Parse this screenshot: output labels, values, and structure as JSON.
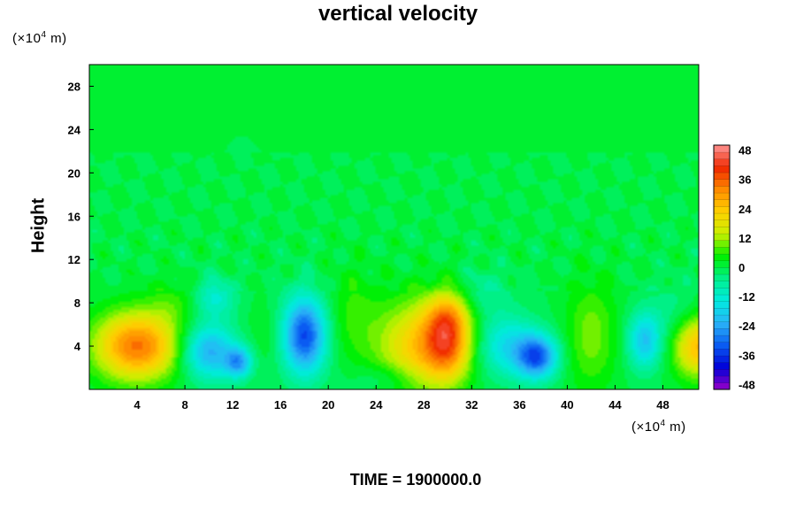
{
  "chart_data": {
    "type": "heatmap",
    "title": "vertical velocity",
    "ylabel": "Height",
    "x_unit_label": "(×10⁴ m)",
    "y_unit_label": "(×10⁴ m)",
    "unit_prefix": "(×10",
    "unit_exp": "4",
    "unit_suffix": " m)",
    "xlim": [
      0,
      51
    ],
    "ylim": [
      0,
      30
    ],
    "x_ticks": [
      4,
      8,
      12,
      16,
      20,
      24,
      28,
      32,
      36,
      40,
      44,
      48
    ],
    "y_ticks": [
      4,
      8,
      12,
      16,
      20,
      24,
      28
    ],
    "colorbar": {
      "range": [
        -50,
        50
      ],
      "ticks": [
        48,
        36,
        24,
        12,
        0,
        -12,
        -24,
        -36,
        -48
      ],
      "levels": 36
    },
    "features": [
      {
        "x": 4,
        "y": 4,
        "value": 34,
        "sx": 2.5,
        "sy": 2.2
      },
      {
        "x": 10,
        "y": 3.5,
        "value": -24,
        "sx": 1.6,
        "sy": 1.8
      },
      {
        "x": 12.5,
        "y": 2.5,
        "value": -22,
        "sx": 0.8,
        "sy": 1.0
      },
      {
        "x": 10.5,
        "y": 8.5,
        "value": -12,
        "sx": 1.2,
        "sy": 1.3
      },
      {
        "x": 18,
        "y": 5,
        "value": -34,
        "sx": 1.3,
        "sy": 2.5
      },
      {
        "x": 22,
        "y": 7,
        "value": 6,
        "sx": 1.5,
        "sy": 3.0
      },
      {
        "x": 27.5,
        "y": 4,
        "value": 22,
        "sx": 2.5,
        "sy": 3.0
      },
      {
        "x": 30,
        "y": 4.5,
        "value": 28,
        "sx": 1.4,
        "sy": 2.5
      },
      {
        "x": 30,
        "y": 7,
        "value": 10,
        "sx": 1.2,
        "sy": 1.5
      },
      {
        "x": 35,
        "y": 4,
        "value": -16,
        "sx": 1.8,
        "sy": 2.0
      },
      {
        "x": 37.5,
        "y": 3,
        "value": -30,
        "sx": 1.2,
        "sy": 1.4
      },
      {
        "x": 42,
        "y": 5,
        "value": 10,
        "sx": 1.5,
        "sy": 3.5
      },
      {
        "x": 46.5,
        "y": 4.5,
        "value": -20,
        "sx": 1.0,
        "sy": 1.8
      },
      {
        "x": 51,
        "y": 4,
        "value": 26,
        "sx": 1.5,
        "sy": 2.0
      },
      {
        "x": 49,
        "y": 7,
        "value": -5,
        "sx": 1.5,
        "sy": 2.0
      },
      {
        "x": 15,
        "y": 5,
        "value": 3,
        "sx": 1.2,
        "sy": 2.0
      },
      {
        "x": 7,
        "y": 8,
        "value": 5,
        "sx": 1.5,
        "sy": 1.5
      },
      {
        "x": 25,
        "y": 1,
        "value": -6,
        "sx": 2.0,
        "sy": 1.0
      },
      {
        "x": 33,
        "y": 9,
        "value": -6,
        "sx": 1.5,
        "sy": 1.5
      }
    ],
    "colorscale": [
      "#9a00c8",
      "#0000d8",
      "#0a5cf2",
      "#2ab4f8",
      "#00ebe0",
      "#00f08c",
      "#00f000",
      "#c8f000",
      "#ffd200",
      "#ff8c00",
      "#f02800",
      "#ff9696"
    ]
  },
  "time_label": "TIME = 1900000.0"
}
